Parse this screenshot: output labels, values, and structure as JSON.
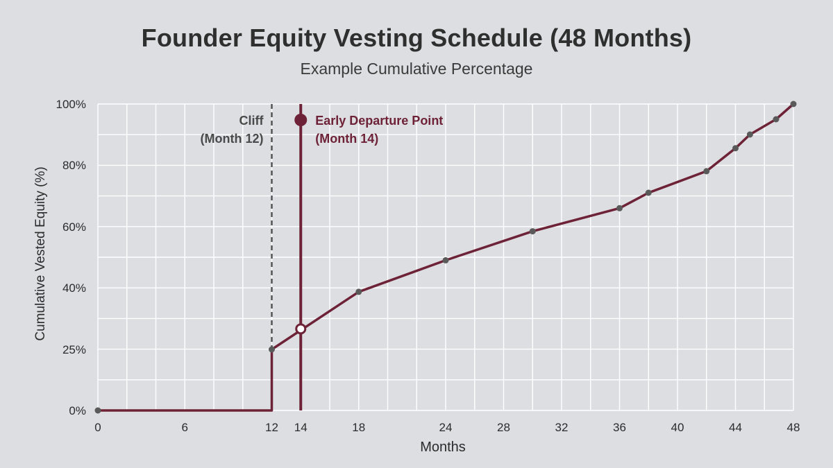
{
  "chart_data": {
    "type": "line",
    "title": "Founder Equity Vesting Schedule (48 Months)",
    "subtitle": "Example Cumulative Percentage",
    "xlabel": "Months",
    "ylabel": "Cumulative Vested Equity (%)",
    "xlim": [
      0,
      48
    ],
    "ylim": [
      0,
      100
    ],
    "x_ticks": [
      0,
      6,
      12,
      14,
      18,
      24,
      28,
      32,
      36,
      40,
      44,
      48
    ],
    "y_ticks": [
      {
        "value": 0,
        "label": "0%"
      },
      {
        "value": 25,
        "label": "25%"
      },
      {
        "value": 40,
        "label": "40%"
      },
      {
        "value": 60,
        "label": "60%"
      },
      {
        "value": 80,
        "label": "80%"
      },
      {
        "value": 100,
        "label": "100%"
      }
    ],
    "grid": true,
    "series": [
      {
        "color": "#6e2237",
        "points": [
          {
            "x": 0,
            "y": 0
          },
          {
            "x": 12,
            "y": 0
          },
          {
            "x": 12,
            "y": 25
          },
          {
            "x": 18,
            "y": 39
          },
          {
            "x": 24,
            "y": 49
          },
          {
            "x": 30,
            "y": 58.5
          },
          {
            "x": 36,
            "y": 66
          },
          {
            "x": 38,
            "y": 71
          },
          {
            "x": 42,
            "y": 78
          },
          {
            "x": 44,
            "y": 85.5
          },
          {
            "x": 45,
            "y": 90
          },
          {
            "x": 46.8,
            "y": 95
          },
          {
            "x": 48,
            "y": 100
          }
        ],
        "markers_x": [
          0,
          12,
          18,
          24,
          30,
          36,
          38,
          42,
          44,
          45,
          46.8,
          48
        ]
      }
    ],
    "reference_lines": [
      {
        "x": 12,
        "style": "dashed",
        "color": "#555555",
        "label_lines": [
          "Cliff",
          "(Month 12)"
        ]
      },
      {
        "x": 14,
        "style": "solid",
        "color": "#6e2237",
        "label_lines": [
          "Early Departure Point",
          "(Month 14)"
        ],
        "highlight_y": 30
      }
    ]
  }
}
